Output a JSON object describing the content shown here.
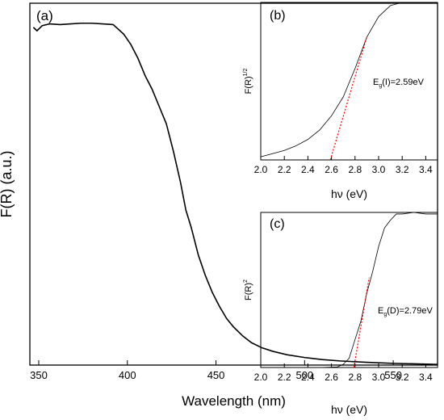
{
  "chart_data": [
    {
      "type": "line",
      "panel_label": "(a)",
      "xlabel": "Wavelength (nm)",
      "ylabel": "F(R) (a.u.)",
      "xlim": [
        345,
        575
      ],
      "xticks": [
        350,
        400,
        450,
        500,
        550
      ],
      "y_ticks_shown": false,
      "ylim": [
        0,
        1.05
      ],
      "series": [
        {
          "color": "#000000",
          "points": [
            [
              347,
              0.98
            ],
            [
              349,
              0.97
            ],
            [
              352,
              0.985
            ],
            [
              356,
              0.99
            ],
            [
              362,
              0.988
            ],
            [
              368,
              0.99
            ],
            [
              374,
              0.992
            ],
            [
              380,
              0.992
            ],
            [
              386,
              0.99
            ],
            [
              392,
              0.988
            ],
            [
              398,
              0.96
            ],
            [
              402,
              0.93
            ],
            [
              406,
              0.89
            ],
            [
              410,
              0.84
            ],
            [
              414,
              0.8
            ],
            [
              418,
              0.75
            ],
            [
              422,
              0.7
            ],
            [
              426,
              0.62
            ],
            [
              430,
              0.53
            ],
            [
              433,
              0.45
            ],
            [
              436,
              0.4
            ],
            [
              440,
              0.32
            ],
            [
              444,
              0.26
            ],
            [
              448,
              0.21
            ],
            [
              452,
              0.17
            ],
            [
              456,
              0.135
            ],
            [
              460,
              0.11
            ],
            [
              465,
              0.085
            ],
            [
              470,
              0.065
            ],
            [
              476,
              0.05
            ],
            [
              482,
              0.04
            ],
            [
              490,
              0.03
            ],
            [
              500,
              0.022
            ],
            [
              510,
              0.016
            ],
            [
              520,
              0.012
            ],
            [
              535,
              0.008
            ],
            [
              550,
              0.005
            ],
            [
              575,
              0.002
            ]
          ]
        }
      ],
      "grid": false,
      "legend": "none"
    },
    {
      "type": "line",
      "panel_label": "(b)",
      "xlabel": "hν (eV)",
      "ylabel": "F(R)",
      "ylabel_superscript": "1/2",
      "xlim": [
        2.0,
        3.5
      ],
      "xticks": [
        "2.0",
        "2.2",
        "2.4",
        "2.6",
        "2.8",
        "3.0",
        "3.2",
        "3.4"
      ],
      "y_ticks_shown": false,
      "ylim": [
        0,
        1.0
      ],
      "annotation": {
        "main": "E",
        "subscript": "g",
        "rest": "(I)=2.59eV"
      },
      "series": [
        {
          "style": "solid",
          "color": "#000000",
          "points": [
            [
              2.0,
              0.02
            ],
            [
              2.1,
              0.04
            ],
            [
              2.2,
              0.06
            ],
            [
              2.3,
              0.09
            ],
            [
              2.4,
              0.13
            ],
            [
              2.5,
              0.19
            ],
            [
              2.6,
              0.28
            ],
            [
              2.7,
              0.4
            ],
            [
              2.8,
              0.58
            ],
            [
              2.9,
              0.78
            ],
            [
              3.0,
              0.91
            ],
            [
              3.1,
              0.98
            ],
            [
              3.2,
              1.0
            ],
            [
              3.3,
              1.0
            ],
            [
              3.4,
              1.0
            ],
            [
              3.5,
              1.0
            ]
          ]
        },
        {
          "style": "dashed",
          "color": "#ff0000",
          "points": [
            [
              2.59,
              0.0
            ],
            [
              2.9,
              0.78
            ]
          ]
        }
      ],
      "grid": false,
      "legend": "none"
    },
    {
      "type": "line",
      "panel_label": "(c)",
      "xlabel": "hν (eV)",
      "ylabel": "F(R)",
      "ylabel_superscript": "2",
      "xlim": [
        2.0,
        3.5
      ],
      "xticks": [
        "2.0",
        "2.2",
        "2.4",
        "2.6",
        "2.8",
        "3.0",
        "3.2",
        "3.4"
      ],
      "y_ticks_shown": false,
      "ylim": [
        0,
        1.0
      ],
      "annotation": {
        "main": "E",
        "subscript": "g",
        "rest": "(D)=2.79eV"
      },
      "series": [
        {
          "style": "solid",
          "color": "#000000",
          "points": [
            [
              2.0,
              0.0
            ],
            [
              2.5,
              0.0
            ],
            [
              2.65,
              0.004
            ],
            [
              2.7,
              0.02
            ],
            [
              2.75,
              0.06
            ],
            [
              2.8,
              0.18
            ],
            [
              2.85,
              0.3
            ],
            [
              2.9,
              0.48
            ],
            [
              2.95,
              0.62
            ],
            [
              3.0,
              0.78
            ],
            [
              3.05,
              0.9
            ],
            [
              3.1,
              0.95
            ],
            [
              3.15,
              0.99
            ],
            [
              3.2,
              0.99
            ],
            [
              3.3,
              1.0
            ],
            [
              3.4,
              0.99
            ],
            [
              3.5,
              0.99
            ]
          ]
        },
        {
          "style": "dashed",
          "color": "#ff0000",
          "points": [
            [
              2.79,
              0.0
            ],
            [
              2.92,
              0.58
            ]
          ]
        }
      ],
      "grid": false,
      "legend": "none"
    }
  ]
}
